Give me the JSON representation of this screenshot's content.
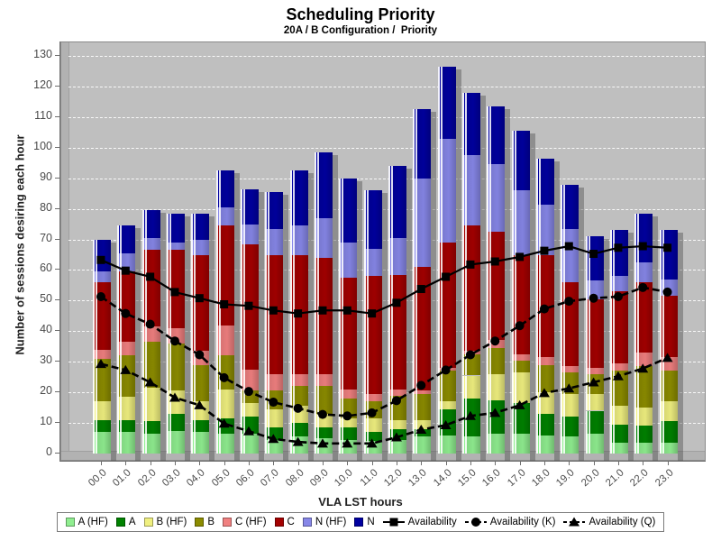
{
  "title": "Scheduling Priority",
  "subtitle": "20A / B Configuration /  Priority",
  "chart_data": {
    "type": "bar",
    "stacked": true,
    "grid": true,
    "legend_position": "bottom",
    "plot_bg_color": "#BFBFBF",
    "grid_color": "#FFFFFF",
    "xlabel": "VLA LST hours",
    "ylabel": "Number of sessions desiring each hour",
    "ylim": [
      0,
      130
    ],
    "ytick_step": 10,
    "categories": [
      "00.0",
      "01.0",
      "02.0",
      "03.0",
      "04.0",
      "05.0",
      "06.0",
      "07.0",
      "08.0",
      "09.0",
      "10.0",
      "11.0",
      "12.0",
      "13.0",
      "14.0",
      "15.0",
      "16.0",
      "17.0",
      "18.0",
      "19.0",
      "20.0",
      "21.0",
      "22.0",
      "23.0"
    ],
    "bar_series": [
      {
        "name": "A (HF)",
        "color": "#90EE90",
        "values": [
          7,
          7,
          6.5,
          7.5,
          7,
          6.5,
          6.5,
          4.5,
          5.5,
          5,
          4.5,
          4,
          4.5,
          5.5,
          6,
          5.5,
          6.5,
          6.5,
          6,
          5.5,
          6.5,
          3.5,
          3.5,
          3.5
        ]
      },
      {
        "name": "A",
        "color": "#008200",
        "values": [
          4,
          4,
          4,
          5.5,
          4,
          5,
          5.5,
          4,
          4.5,
          3.5,
          4,
          3,
          3.5,
          2.5,
          8.5,
          12.5,
          11,
          10,
          7,
          6.5,
          7.5,
          6,
          5.5,
          7
        ]
      },
      {
        "name": "B (HF)",
        "color": "#F0F080",
        "values": [
          6,
          7.5,
          11,
          7.5,
          6,
          9.5,
          4.5,
          6,
          5.5,
          4.5,
          3,
          4.5,
          3,
          3,
          2.5,
          7.5,
          8.5,
          10,
          7,
          7.5,
          5.5,
          6,
          6,
          6.5
        ]
      },
      {
        "name": "B",
        "color": "#8C8C00",
        "values": [
          14,
          13.5,
          15,
          15.5,
          12,
          11,
          4,
          6,
          6.5,
          9,
          6.5,
          5.5,
          8,
          8.5,
          10,
          7,
          8.5,
          4,
          9,
          7,
          6.5,
          11.5,
          13.5,
          10
        ]
      },
      {
        "name": "C (HF)",
        "color": "#F08080",
        "values": [
          3,
          4.5,
          5,
          5,
          4.5,
          10,
          7,
          5.5,
          4,
          4,
          3,
          2.5,
          2,
          1,
          1,
          1,
          2.5,
          2,
          2.5,
          2,
          2,
          2.5,
          4.5,
          4.5
        ]
      },
      {
        "name": "C",
        "color": "#A40000",
        "values": [
          22,
          23,
          25,
          25.5,
          31.5,
          32.5,
          41,
          39,
          39,
          38,
          36.5,
          38.5,
          37.5,
          40.5,
          41,
          41,
          35.5,
          32.5,
          33.5,
          27.5,
          22.5,
          23.5,
          23,
          20
        ]
      },
      {
        "name": "N (HF)",
        "color": "#8787E8",
        "values": [
          3.5,
          6,
          4,
          2.5,
          5,
          6,
          6.5,
          8.5,
          9.5,
          13,
          11.5,
          9,
          12,
          29,
          34,
          23,
          22,
          21,
          16.5,
          17.5,
          6,
          5,
          6.5,
          5.5
        ]
      },
      {
        "name": "N",
        "color": "#0000A0",
        "values": [
          10.5,
          9,
          9,
          9.5,
          8.5,
          12,
          11.5,
          12,
          18,
          21.5,
          21,
          19,
          23.5,
          22.5,
          23.5,
          20.5,
          19,
          19.5,
          15,
          14.5,
          14.5,
          15,
          16,
          16
        ]
      }
    ],
    "line_series": [
      {
        "name": "Availability",
        "color": "#000000",
        "marker": "square",
        "style": "solid",
        "values": [
          63,
          59.5,
          57.5,
          52.5,
          50.5,
          48.5,
          48,
          46.5,
          45.5,
          46.5,
          46.5,
          45.5,
          49,
          53.5,
          57.5,
          61.5,
          62.5,
          64,
          66,
          67.5,
          65,
          67,
          67.5,
          67
        ]
      },
      {
        "name": "Availability (K)",
        "color": "#000000",
        "marker": "circle",
        "style": "dashed",
        "values": [
          51,
          45.5,
          42,
          36.5,
          32,
          24.5,
          20,
          16.5,
          14.5,
          12.5,
          12,
          13,
          17,
          22,
          27,
          32,
          36.5,
          41.5,
          47,
          49.5,
          50.5,
          51,
          54,
          52.5
        ]
      },
      {
        "name": "Availability (Q)",
        "color": "#000000",
        "marker": "triangle",
        "style": "dashed",
        "values": [
          29,
          27,
          23,
          18,
          15.5,
          9.5,
          7,
          4.5,
          3.5,
          3,
          3,
          3,
          5,
          7.5,
          9,
          12,
          13,
          15.5,
          19.5,
          21,
          23,
          25,
          27.5,
          31
        ]
      }
    ]
  }
}
